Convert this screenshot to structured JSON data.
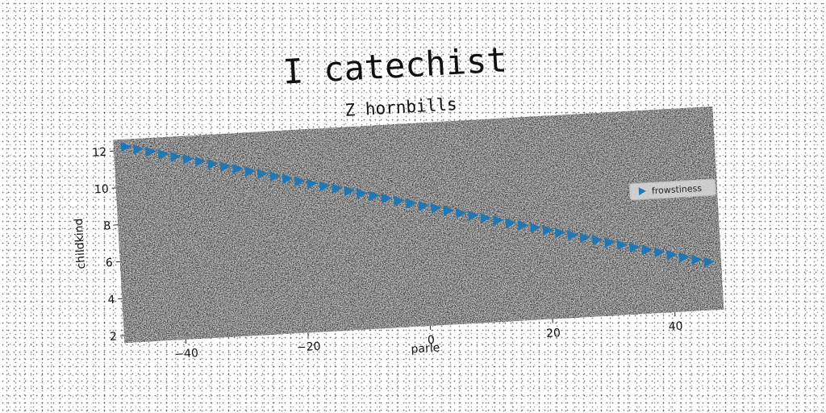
{
  "chart_data": {
    "type": "scatter",
    "title": "I catechist",
    "subtitle": "Z hornbills",
    "xlabel": "parle",
    "ylabel": "childkind",
    "xlim": [
      -50,
      48
    ],
    "ylim": [
      1.6,
      12.6
    ],
    "xticks": [
      -40,
      -20,
      0,
      20,
      40
    ],
    "yticks": [
      2,
      4,
      6,
      8,
      10,
      12
    ],
    "xtick_labels": [
      "−40",
      "−20",
      "0",
      "20",
      "40"
    ],
    "ytick_labels": [
      "2",
      "4",
      "6",
      "8",
      "10",
      "12"
    ],
    "grid": false,
    "legend_position": "center-right",
    "plot_background": "#808080",
    "series": [
      {
        "name": "frowstiness",
        "color": "#1f77b4",
        "marker": "triangle-right",
        "x": [
          -48,
          -46,
          -44,
          -42,
          -40,
          -38,
          -36,
          -34,
          -32,
          -30,
          -28,
          -26,
          -24,
          -22,
          -20,
          -18,
          -16,
          -14,
          -12,
          -10,
          -8,
          -6,
          -4,
          -2,
          0,
          2,
          4,
          6,
          8,
          10,
          12,
          14,
          16,
          18,
          20,
          22,
          24,
          26,
          28,
          30,
          32,
          34,
          36,
          38,
          40,
          42,
          44,
          46
        ],
        "y": [
          12.2,
          12.03,
          11.86,
          11.69,
          11.52,
          11.35,
          11.18,
          11.01,
          10.84,
          10.67,
          10.5,
          10.33,
          10.16,
          9.99,
          9.82,
          9.65,
          9.48,
          9.31,
          9.14,
          8.97,
          8.8,
          8.63,
          8.46,
          8.29,
          8.12,
          7.95,
          7.78,
          7.61,
          7.44,
          7.27,
          7.1,
          6.93,
          6.76,
          6.59,
          6.42,
          6.25,
          6.08,
          5.91,
          5.74,
          5.57,
          5.4,
          5.23,
          5.06,
          4.89,
          4.72,
          4.55,
          4.38,
          4.21
        ]
      }
    ]
  }
}
